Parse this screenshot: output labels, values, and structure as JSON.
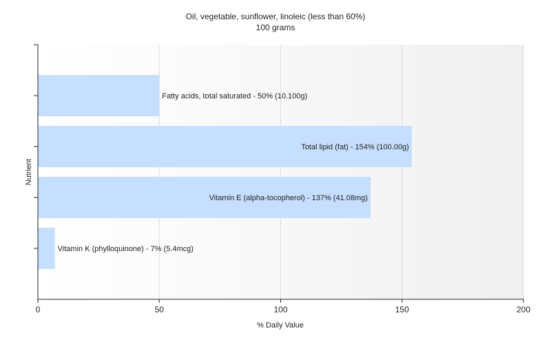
{
  "chart_data": {
    "type": "bar",
    "orientation": "horizontal",
    "title": "Oil, vegetable, sunflower, linoleic (less than 60%)",
    "subtitle": "100 grams",
    "xlabel": "% Daily Value",
    "ylabel": "Nutrient",
    "xlim": [
      0,
      200
    ],
    "xticks": [
      0,
      50,
      100,
      150,
      200
    ],
    "grid": true,
    "bar_color": "#c6dffe",
    "bars": [
      {
        "label": "Fatty acids, total saturated - 50% (10.100g)",
        "value": 50
      },
      {
        "label": "Total lipid (fat) - 154% (100.00g)",
        "value": 154
      },
      {
        "label": "Vitamin E (alpha-tocopherol) - 137% (41.08mg)",
        "value": 137
      },
      {
        "label": "Vitamin K (phylloquinone) - 7% (5.4mcg)",
        "value": 7
      }
    ]
  }
}
